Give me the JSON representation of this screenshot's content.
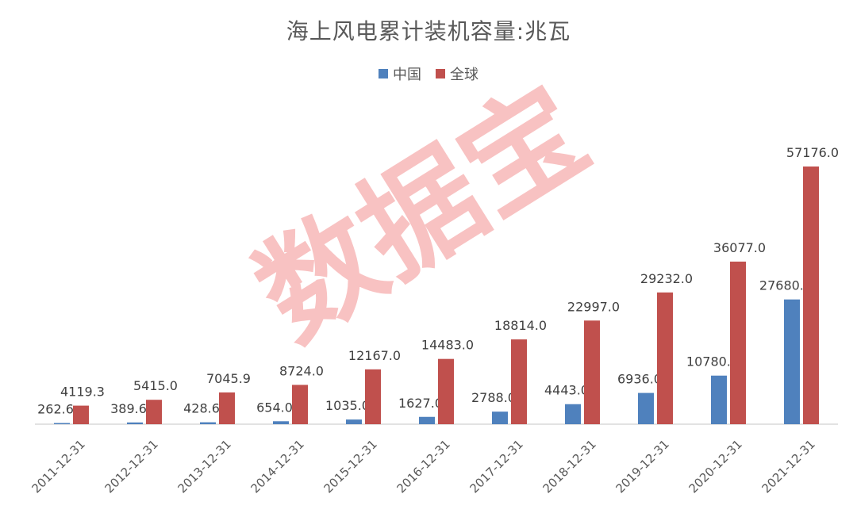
{
  "chart_data": {
    "type": "bar",
    "title": "海上风电累计装机容量:兆瓦",
    "categories": [
      "2011-12-31",
      "2012-12-31",
      "2013-12-31",
      "2014-12-31",
      "2015-12-31",
      "2016-12-31",
      "2017-12-31",
      "2018-12-31",
      "2019-12-31",
      "2020-12-31",
      "2021-12-31"
    ],
    "series": [
      {
        "name": "中国",
        "color": "#4f81bd",
        "values": [
          262.6,
          389.6,
          428.6,
          654.0,
          1035.0,
          1627.0,
          2788.0,
          4443.0,
          6936.0,
          10780.0,
          27680.0
        ],
        "labels": [
          "262.6",
          "389.6",
          "428.6",
          "654.0",
          "1035.0",
          "1627.0",
          "2788.0",
          "4443.0",
          "6936.0",
          "10780.0",
          "27680.0"
        ]
      },
      {
        "name": "全球",
        "color": "#c0504d",
        "values": [
          4119.3,
          5415.0,
          7045.9,
          8724.0,
          12167.0,
          14483.0,
          18814.0,
          22997.0,
          29232.0,
          36077.0,
          57176.0
        ],
        "labels": [
          "4119.3",
          "5415.0",
          "7045.9",
          "8724.0",
          "12167.0",
          "14483.0",
          "18814.0",
          "22997.0",
          "29232.0",
          "36077.0",
          "57176.0"
        ]
      }
    ],
    "ylim": [
      0,
      57176
    ],
    "legend_position": "top",
    "grid": false,
    "watermark": "数据宝"
  }
}
